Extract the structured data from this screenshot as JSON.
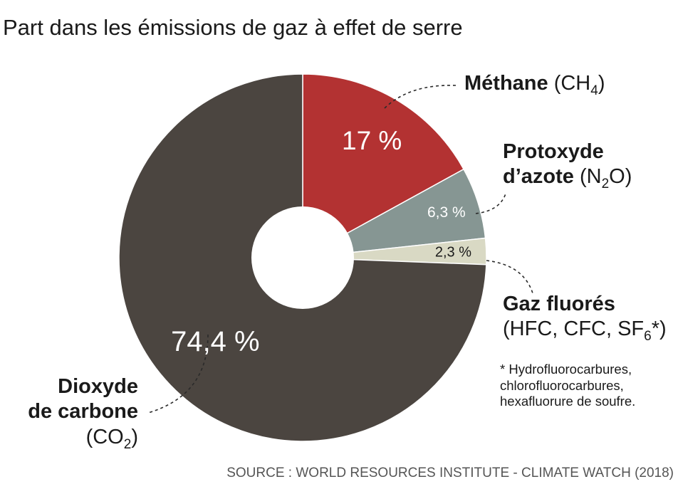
{
  "title": "Part dans les émissions de gaz à effet de serre",
  "source": "SOURCE : WORLD RESOURCES INSTITUTE - CLIMATE WATCH (2018)",
  "colors": {
    "co2": "#4b4540",
    "ch4": "#b33232",
    "n2o": "#869693",
    "fgas": "#d9d9c4"
  },
  "labels": {
    "ch4": {
      "name": "Méthane",
      "formula_pre": "(CH",
      "formula_sub": "4",
      "formula_post": ")"
    },
    "n2o": {
      "name_line1": "Protoxyde",
      "name_line2": "d’azote",
      "formula_pre": "(N",
      "formula_sub": "2",
      "formula_post": "O)"
    },
    "fgas": {
      "name": "Gaz fluorés",
      "formula_pre": "(HFC, CFC, SF",
      "formula_sub": "6",
      "formula_post": "*)"
    },
    "co2": {
      "name_line1": "Dioxyde",
      "name_line2": "de carbone",
      "formula_pre": "(CO",
      "formula_sub": "2",
      "formula_post": ")"
    }
  },
  "footnote": {
    "line1": "* Hydrofluorocarbures,",
    "line2": "chlorofluorocarbures,",
    "line3": "hexafluorure de soufre."
  },
  "chart_data": {
    "type": "pie",
    "title": "Part dans les émissions de gaz à effet de serre",
    "donut": true,
    "slices": [
      {
        "key": "ch4",
        "label": "Méthane (CH4)",
        "value": 17,
        "display": "17 %"
      },
      {
        "key": "n2o",
        "label": "Protoxyde d’azote (N2O)",
        "value": 6.3,
        "display": "6,3 %"
      },
      {
        "key": "fgas",
        "label": "Gaz fluorés (HFC, CFC, SF6*)",
        "value": 2.3,
        "display": "2,3 %"
      },
      {
        "key": "co2",
        "label": "Dioxyde de carbone (CO2)",
        "value": 74.4,
        "display": "74,4 %"
      }
    ]
  }
}
